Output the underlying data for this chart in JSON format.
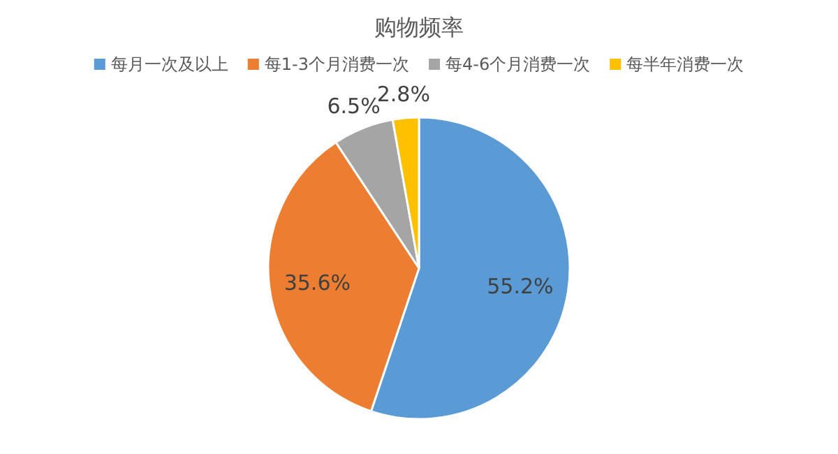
{
  "chart_data": {
    "type": "pie",
    "title": "购物频率",
    "categories": [
      "每月一次及以上",
      "每1-3个月消费一次",
      "每4-6个月消费一次",
      "每半年消费一次"
    ],
    "values": [
      55.2,
      35.6,
      6.5,
      2.8
    ],
    "colors": [
      "#5b9bd5",
      "#ed7d31",
      "#a5a5a5",
      "#ffc000"
    ],
    "value_labels": [
      "55.2%",
      "35.6%",
      "6.5%",
      "2.8%"
    ],
    "legend": "top"
  }
}
